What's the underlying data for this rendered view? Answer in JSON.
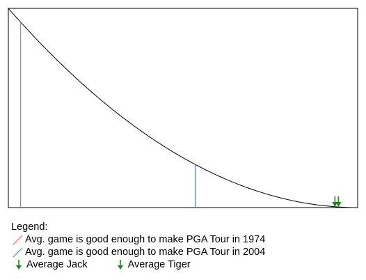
{
  "chart_data": {
    "type": "line",
    "title": "",
    "xlabel": "",
    "ylabel": "",
    "axes_ticks": "none",
    "grid": false,
    "curve": {
      "description_values": "decreasing convex curve from top-left to bottom-right",
      "x": [
        0,
        0.1,
        0.2,
        0.3,
        0.4,
        0.5,
        0.6,
        0.7,
        0.8,
        0.9,
        1.0
      ],
      "y": [
        1.0,
        0.81,
        0.64,
        0.49,
        0.36,
        0.25,
        0.16,
        0.09,
        0.04,
        0.01,
        0.0
      ]
    },
    "markers": [
      {
        "type": "vline",
        "series": "1974",
        "x": 0.035,
        "color": "#e8735f"
      },
      {
        "type": "vline",
        "series": "2004",
        "x": 0.535,
        "color": "#5b7fe0"
      },
      {
        "type": "arrow",
        "series": "jack",
        "x": 0.935,
        "color": "#1a8a1a"
      },
      {
        "type": "arrow",
        "series": "tiger",
        "x": 0.945,
        "color": "#1a8a1a"
      }
    ]
  },
  "legend": {
    "heading": "Legend:",
    "item_1974": "Avg. game is good enough to make PGA Tour in 1974",
    "item_2004": "Avg. game is good enough to make PGA Tour in 2004",
    "item_jack": "Average Jack",
    "item_tiger": "Average Tiger"
  },
  "colors": {
    "line_1974": "#e8735f",
    "line_2004": "#5b7fe0",
    "arrow_green": "#1a8a1a"
  }
}
